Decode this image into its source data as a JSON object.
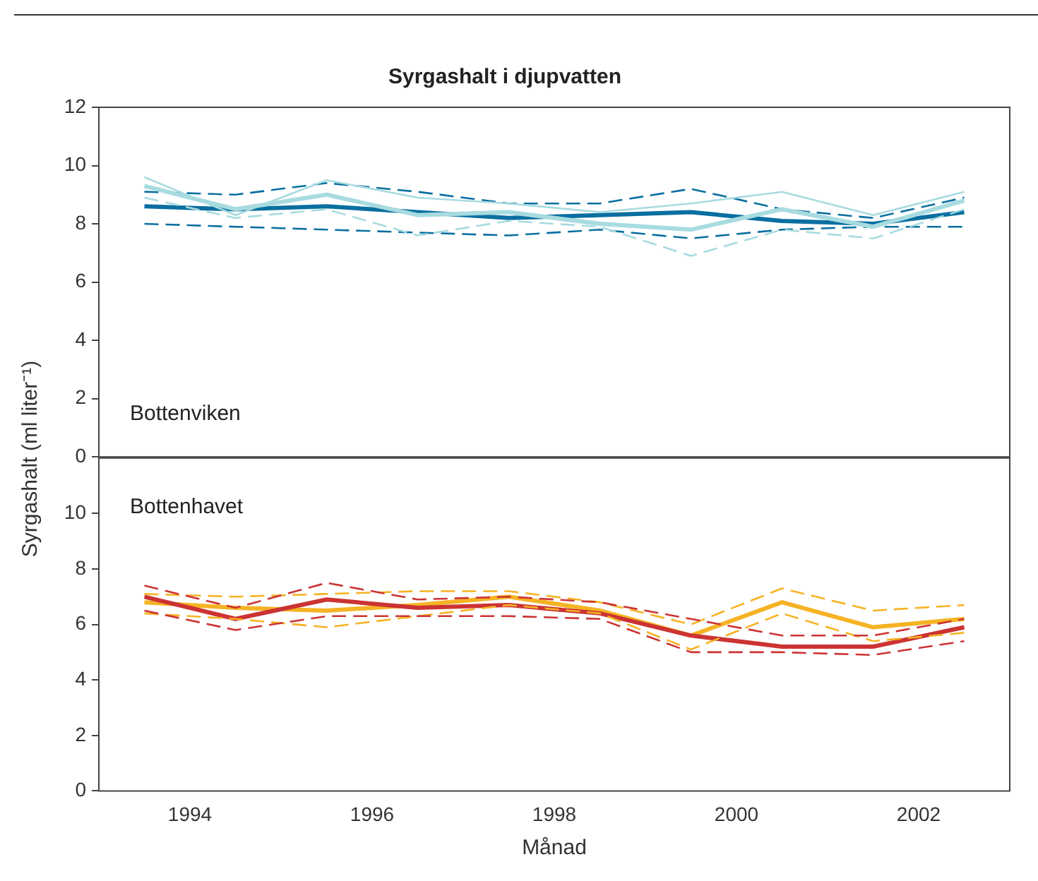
{
  "chart_data": [
    {
      "type": "line",
      "title": "Syrgashalt i djupvatten",
      "ylabel": "Syrgashalt (ml liter⁻¹)",
      "annotations": [
        "Bottenviken"
      ],
      "x": [
        1993.5,
        1994.5,
        1995.5,
        1996.5,
        1997.5,
        1998.5,
        1999.5,
        2000.5,
        2001.5,
        2002.5
      ],
      "xlim": [
        1993,
        2003
      ],
      "xticks": [
        1994,
        1996,
        1998,
        2000,
        2002
      ],
      "ylim": [
        0,
        12
      ],
      "yticks": [
        0,
        2,
        4,
        6,
        8,
        10,
        12
      ],
      "tick_labels": "y",
      "marker": "none",
      "legend": false,
      "series": [
        {
          "color": "#a8dbe0",
          "line_style": "solid",
          "values": [
            9.6,
            8.3,
            9.5,
            8.9,
            8.7,
            8.4,
            8.7,
            9.1,
            8.3,
            9.1
          ]
        },
        {
          "color": "#a8dbe0",
          "line_style": "dashed",
          "values": [
            8.9,
            8.2,
            8.5,
            7.6,
            8.1,
            7.9,
            6.9,
            7.8,
            7.5,
            8.5
          ]
        },
        {
          "color": "#a8dbe0",
          "line_style": "solid",
          "values": [
            9.3,
            8.5,
            9.0,
            8.3,
            8.4,
            8.0,
            7.8,
            8.5,
            7.9,
            8.8
          ]
        },
        {
          "color": "#0a6fa0",
          "line_style": "dashed",
          "values": [
            9.1,
            9.0,
            9.4,
            9.1,
            8.7,
            8.7,
            9.2,
            8.5,
            8.2,
            8.9
          ]
        },
        {
          "color": "#0a6fa0",
          "line_style": "dashed",
          "values": [
            8.0,
            7.9,
            7.8,
            7.7,
            7.6,
            7.8,
            7.5,
            7.8,
            7.9,
            7.9
          ]
        },
        {
          "color": "#0a6fa0",
          "line_style": "solid",
          "values": [
            8.6,
            8.5,
            8.6,
            8.4,
            8.2,
            8.3,
            8.4,
            8.1,
            8.0,
            8.4
          ]
        }
      ]
    },
    {
      "type": "line",
      "xlabel": "Månad",
      "annotations": [
        "Bottenhavet"
      ],
      "x": [
        1993.5,
        1994.5,
        1995.5,
        1996.5,
        1997.5,
        1998.5,
        1999.5,
        2000.5,
        2001.5,
        2002.5
      ],
      "xlim": [
        1993,
        2003
      ],
      "xticks": [
        1994,
        1996,
        1998,
        2000,
        2002
      ],
      "ylim": [
        0,
        12
      ],
      "yticks": [
        0,
        2,
        4,
        6,
        8,
        10
      ],
      "marker": "none",
      "legend": false,
      "series": [
        {
          "color": "#cc3333",
          "line_style": "dashed",
          "values": [
            7.4,
            6.6,
            7.5,
            6.9,
            7.0,
            6.8,
            6.2,
            5.6,
            5.6,
            6.2
          ]
        },
        {
          "color": "#cc3333",
          "line_style": "dashed",
          "values": [
            6.5,
            5.8,
            6.3,
            6.3,
            6.3,
            6.2,
            5.0,
            5.0,
            4.9,
            5.4
          ]
        },
        {
          "color": "#f5b324",
          "line_style": "dashed",
          "values": [
            7.1,
            7.0,
            7.1,
            7.2,
            7.2,
            6.8,
            6.0,
            7.3,
            6.5,
            6.7
          ]
        },
        {
          "color": "#f5b324",
          "line_style": "dashed",
          "values": [
            6.4,
            6.2,
            5.9,
            6.3,
            6.7,
            6.4,
            5.1,
            6.4,
            5.4,
            5.7
          ]
        },
        {
          "color": "#cc3333",
          "line_style": "solid",
          "values": [
            7.0,
            6.2,
            6.9,
            6.6,
            6.7,
            6.4,
            5.6,
            5.2,
            5.2,
            5.9
          ]
        },
        {
          "color": "#f5b324",
          "line_style": "solid",
          "values": [
            6.8,
            6.6,
            6.5,
            6.7,
            7.0,
            6.5,
            5.6,
            6.8,
            5.9,
            6.2
          ]
        }
      ]
    }
  ]
}
